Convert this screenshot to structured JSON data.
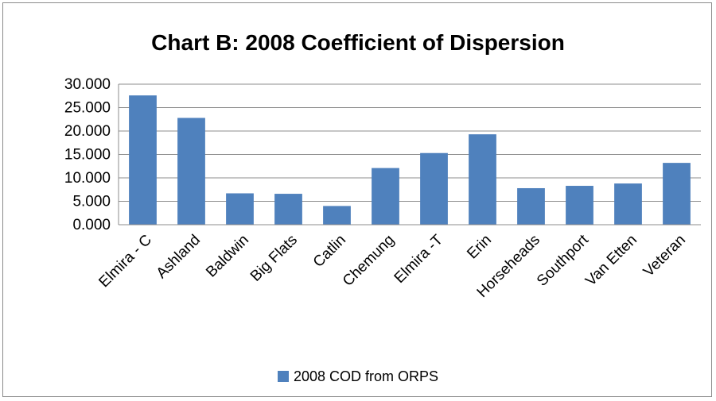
{
  "chart_data": {
    "type": "bar",
    "title": "Chart B: 2008 Coefficient of Dispersion",
    "categories": [
      "Elmira - C",
      "Ashland",
      "Baldwin",
      "Big Flats",
      "Catlin",
      "Chemung",
      "Elmira -T",
      "Erin",
      "Horseheads",
      "Southport",
      "Van Etten",
      "Veteran"
    ],
    "series": [
      {
        "name": "2008 COD from ORPS",
        "values": [
          27.6,
          22.8,
          6.7,
          6.6,
          4.0,
          12.1,
          15.3,
          19.3,
          7.8,
          8.3,
          8.8,
          13.2
        ],
        "color": "#4f81bd"
      }
    ],
    "yticks": [
      "0.000",
      "5.000",
      "10.000",
      "15.000",
      "20.000",
      "25.000",
      "30.000"
    ],
    "ylim": [
      0,
      30
    ],
    "grid": true,
    "legend_position": "bottom"
  }
}
